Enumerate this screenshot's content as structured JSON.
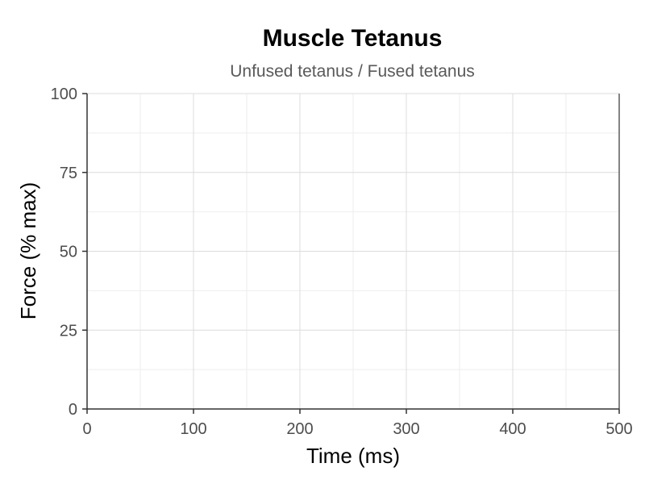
{
  "chart_data": {
    "type": "line",
    "title": "Muscle Tetanus",
    "subtitle": "Unfused tetanus / Fused tetanus",
    "xlabel": "Time (ms)",
    "ylabel": "Force (% max)",
    "xlim": [
      0,
      500
    ],
    "ylim": [
      0,
      100
    ],
    "x_ticks": [
      0,
      100,
      200,
      300,
      400,
      500
    ],
    "y_ticks": [
      0,
      25,
      50,
      75,
      100
    ],
    "grid": true,
    "series": []
  }
}
